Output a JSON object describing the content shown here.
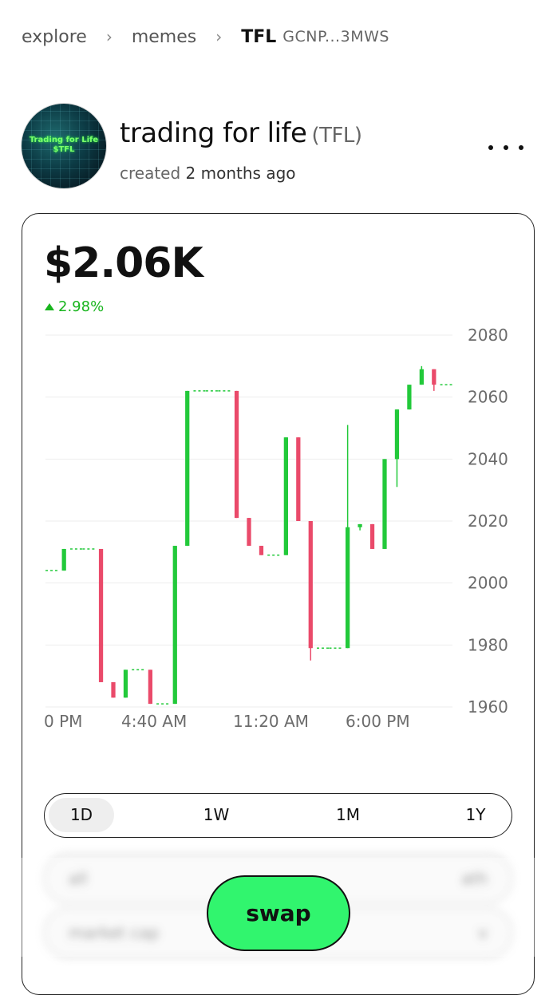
{
  "breadcrumb": {
    "items": [
      "explore",
      "memes"
    ],
    "current_ticker": "TFL",
    "current_address": "GCNP...3MWS"
  },
  "token": {
    "name": "trading for life",
    "ticker_paren": "(TFL)",
    "created_prefix": "created",
    "created_ago": "2 months ago",
    "avatar_text_line1": "Trading for Life",
    "avatar_text_line2": "$TFL"
  },
  "price": {
    "value": "$2.06K",
    "change": "2.98%",
    "change_direction": "up"
  },
  "colors": {
    "up": "#22c93a",
    "down": "#ea4a6a",
    "accent": "#31f56e",
    "positive_text": "#19b51e"
  },
  "chart_data": {
    "type": "candlestick",
    "y_ticks": [
      "2080",
      "2060",
      "2040",
      "2020",
      "2000",
      "1980",
      "1960"
    ],
    "x_ticks": [
      "0 PM",
      "4:40 AM",
      "11:20 AM",
      "6:00 PM"
    ],
    "ylim": [
      1960,
      2080
    ],
    "grid": true,
    "candles": [
      {
        "open": 2004,
        "close": 2004,
        "high": 2004,
        "low": 2004
      },
      {
        "open": 2004,
        "close": 2011,
        "high": 2011,
        "low": 2004
      },
      {
        "open": 2011,
        "close": 2011,
        "high": 2011,
        "low": 2011
      },
      {
        "open": 2011,
        "close": 2011,
        "high": 2011,
        "low": 2011
      },
      {
        "open": 2011,
        "close": 1968,
        "high": 2011,
        "low": 1968
      },
      {
        "open": 1968,
        "close": 1963,
        "high": 1968,
        "low": 1963
      },
      {
        "open": 1963,
        "close": 1972,
        "high": 1972,
        "low": 1963
      },
      {
        "open": 1972,
        "close": 1972,
        "high": 1972,
        "low": 1972
      },
      {
        "open": 1972,
        "close": 1961,
        "high": 1972,
        "low": 1961
      },
      {
        "open": 1961,
        "close": 1961,
        "high": 1961,
        "low": 1961
      },
      {
        "open": 1961,
        "close": 2012,
        "high": 2012,
        "low": 1961
      },
      {
        "open": 2012,
        "close": 2062,
        "high": 2062,
        "low": 2012
      },
      {
        "open": 2062,
        "close": 2062,
        "high": 2062,
        "low": 2062
      },
      {
        "open": 2062,
        "close": 2062,
        "high": 2062,
        "low": 2062
      },
      {
        "open": 2062,
        "close": 2062,
        "high": 2062,
        "low": 2062
      },
      {
        "open": 2062,
        "close": 2021,
        "high": 2062,
        "low": 2021
      },
      {
        "open": 2021,
        "close": 2012,
        "high": 2021,
        "low": 2012
      },
      {
        "open": 2012,
        "close": 2009,
        "high": 2012,
        "low": 2009
      },
      {
        "open": 2009,
        "close": 2009,
        "high": 2009,
        "low": 2009
      },
      {
        "open": 2009,
        "close": 2047,
        "high": 2047,
        "low": 2009
      },
      {
        "open": 2047,
        "close": 2020,
        "high": 2047,
        "low": 2020
      },
      {
        "open": 2020,
        "close": 1979,
        "high": 2020,
        "low": 1975
      },
      {
        "open": 1979,
        "close": 1979,
        "high": 1979,
        "low": 1979
      },
      {
        "open": 1979,
        "close": 1979,
        "high": 1979,
        "low": 1979
      },
      {
        "open": 1979,
        "close": 2018,
        "high": 2051,
        "low": 1979
      },
      {
        "open": 2018,
        "close": 2019,
        "high": 2019,
        "low": 2017
      },
      {
        "open": 2019,
        "close": 2011,
        "high": 2019,
        "low": 2011
      },
      {
        "open": 2011,
        "close": 2040,
        "high": 2040,
        "low": 2011
      },
      {
        "open": 2040,
        "close": 2056,
        "high": 2056,
        "low": 2031
      },
      {
        "open": 2056,
        "close": 2064,
        "high": 2064,
        "low": 2056
      },
      {
        "open": 2064,
        "close": 2069,
        "high": 2070,
        "low": 2064
      },
      {
        "open": 2069,
        "close": 2064,
        "high": 2069,
        "low": 2062
      },
      {
        "open": 2064,
        "close": 2064,
        "high": 2064,
        "low": 2064
      }
    ]
  },
  "periods": [
    "1D",
    "1W",
    "1M",
    "1Y"
  ],
  "active_period": "1D",
  "blurred_rows": [
    {
      "left": "all",
      "right": "ath"
    },
    {
      "left": "market cap",
      "right": "v"
    }
  ],
  "swap_label": "swap"
}
